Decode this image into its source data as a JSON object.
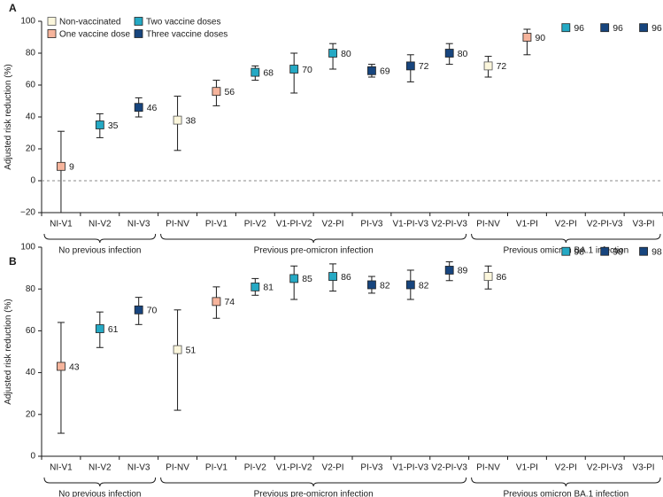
{
  "legend": {
    "items": [
      {
        "key": "NV",
        "label": "Non-vaccinated",
        "color": "#fbf6dc"
      },
      {
        "key": "V1",
        "label": "One vaccine dose",
        "color": "#f6b49c"
      },
      {
        "key": "V2",
        "label": "Two vaccine doses",
        "color": "#25a9c4"
      },
      {
        "key": "V3",
        "label": "Three vaccine doses",
        "color": "#17457e"
      }
    ]
  },
  "chart_data": [
    {
      "type": "scatter",
      "panel_label": "A",
      "ylabel": "Adjusted risk reduction (%)",
      "ylim": [
        -20,
        100
      ],
      "yticks": [
        -20,
        0,
        20,
        40,
        60,
        80,
        100
      ],
      "reference_line": 0,
      "categories": [
        "NI-V1",
        "NI-V2",
        "NI-V3",
        "PI-NV",
        "PI-V1",
        "PI-V2",
        "V1-PI-V2",
        "V2-PI",
        "PI-V3",
        "V1-PI-V3",
        "V2-PI-V3",
        "PI-NV",
        "V1-PI",
        "V2-PI",
        "V2-PI-V3",
        "V3-PI"
      ],
      "values": [
        9,
        35,
        46,
        38,
        56,
        68,
        70,
        80,
        69,
        72,
        80,
        72,
        90,
        96,
        96,
        96
      ],
      "lower": [
        -20,
        27,
        40,
        19,
        47,
        63,
        55,
        70,
        65,
        62,
        73,
        65,
        79,
        null,
        null,
        null
      ],
      "upper": [
        31,
        42,
        52,
        53,
        63,
        72,
        80,
        86,
        73,
        79,
        86,
        78,
        95,
        null,
        null,
        null
      ],
      "dose_groups": [
        "V1",
        "V2",
        "V3",
        "NV",
        "V1",
        "V2",
        "V2",
        "V2",
        "V3",
        "V3",
        "V3",
        "NV",
        "V1",
        "V2",
        "V3",
        "V3"
      ],
      "groups": [
        {
          "label": "No previous infection",
          "first": 0,
          "last": 2
        },
        {
          "label": "Previous pre-omicron infection",
          "first": 3,
          "last": 10
        },
        {
          "label": "Previous omicron BA.1 infection",
          "first": 11,
          "last": 15
        }
      ]
    },
    {
      "type": "scatter",
      "panel_label": "B",
      "ylabel": "Adjusted risk reduction (%)",
      "ylim": [
        0,
        100
      ],
      "yticks": [
        0,
        20,
        40,
        60,
        80,
        100
      ],
      "reference_line": null,
      "categories": [
        "NI-V1",
        "NI-V2",
        "NI-V3",
        "PI-NV",
        "PI-V1",
        "PI-V2",
        "V1-PI-V2",
        "V2-PI",
        "PI-V3",
        "V1-PI-V3",
        "V2-PI-V3",
        "PI-NV",
        "V1-PI",
        "V2-PI",
        "V2-PI-V3",
        "V3-PI"
      ],
      "values": [
        43,
        61,
        70,
        51,
        74,
        81,
        85,
        86,
        82,
        82,
        89,
        86,
        null,
        98,
        98,
        98
      ],
      "lower": [
        11,
        52,
        63,
        22,
        66,
        77,
        75,
        79,
        78,
        75,
        84,
        80,
        null,
        null,
        null,
        null
      ],
      "upper": [
        64,
        69,
        76,
        70,
        81,
        85,
        91,
        92,
        86,
        89,
        93,
        91,
        null,
        null,
        null,
        null
      ],
      "dose_groups": [
        "V1",
        "V2",
        "V3",
        "NV",
        "V1",
        "V2",
        "V2",
        "V2",
        "V3",
        "V3",
        "V3",
        "NV",
        "V1",
        "V2",
        "V3",
        "V3"
      ],
      "groups": [
        {
          "label": "No previous infection",
          "first": 0,
          "last": 2
        },
        {
          "label": "Previous pre-omicron infection",
          "first": 3,
          "last": 10
        },
        {
          "label": "Previous omicron BA.1 infection",
          "first": 11,
          "last": 15
        }
      ]
    }
  ]
}
